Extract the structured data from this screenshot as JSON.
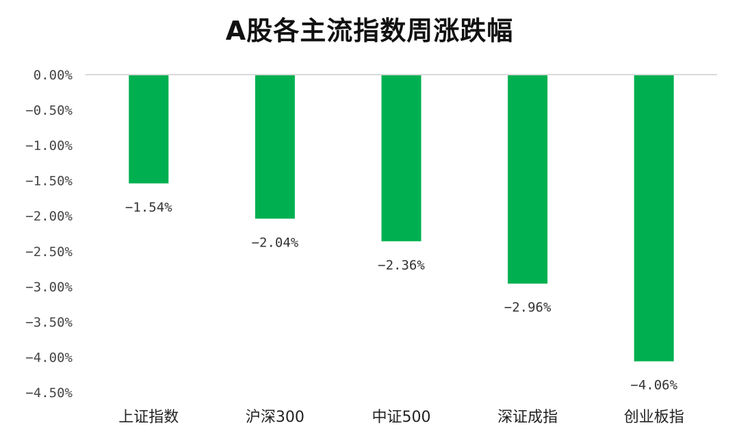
{
  "chart_data": {
    "type": "bar",
    "title": "A股各主流指数周涨跌幅",
    "xlabel": "",
    "ylabel": "",
    "categories": [
      "上证指数",
      "沪深300",
      "中证500",
      "深证成指",
      "创业板指"
    ],
    "series": [
      {
        "values": [
          -1.54,
          -2.04,
          -2.36,
          -2.96,
          -4.06
        ],
        "data_labels": [
          "−1.54%",
          "−2.04%",
          "−2.36%",
          "−2.96%",
          "−4.06%"
        ]
      }
    ],
    "ylim": [
      -4.5,
      0
    ],
    "yticks": [
      0,
      -0.5,
      -1.0,
      -1.5,
      -2.0,
      -2.5,
      -3.0,
      -3.5,
      -4.0,
      -4.5
    ],
    "ytick_labels": [
      "0.00%",
      "−0.50%",
      "−1.00%",
      "−1.50%",
      "−2.00%",
      "−2.50%",
      "−3.00%",
      "−3.50%",
      "−4.00%",
      "−4.50%"
    ],
    "grid": false,
    "legend": "none",
    "colors": {
      "bar": "#00b050",
      "axis_line": "#d9d9d9",
      "text": "#333333"
    }
  }
}
